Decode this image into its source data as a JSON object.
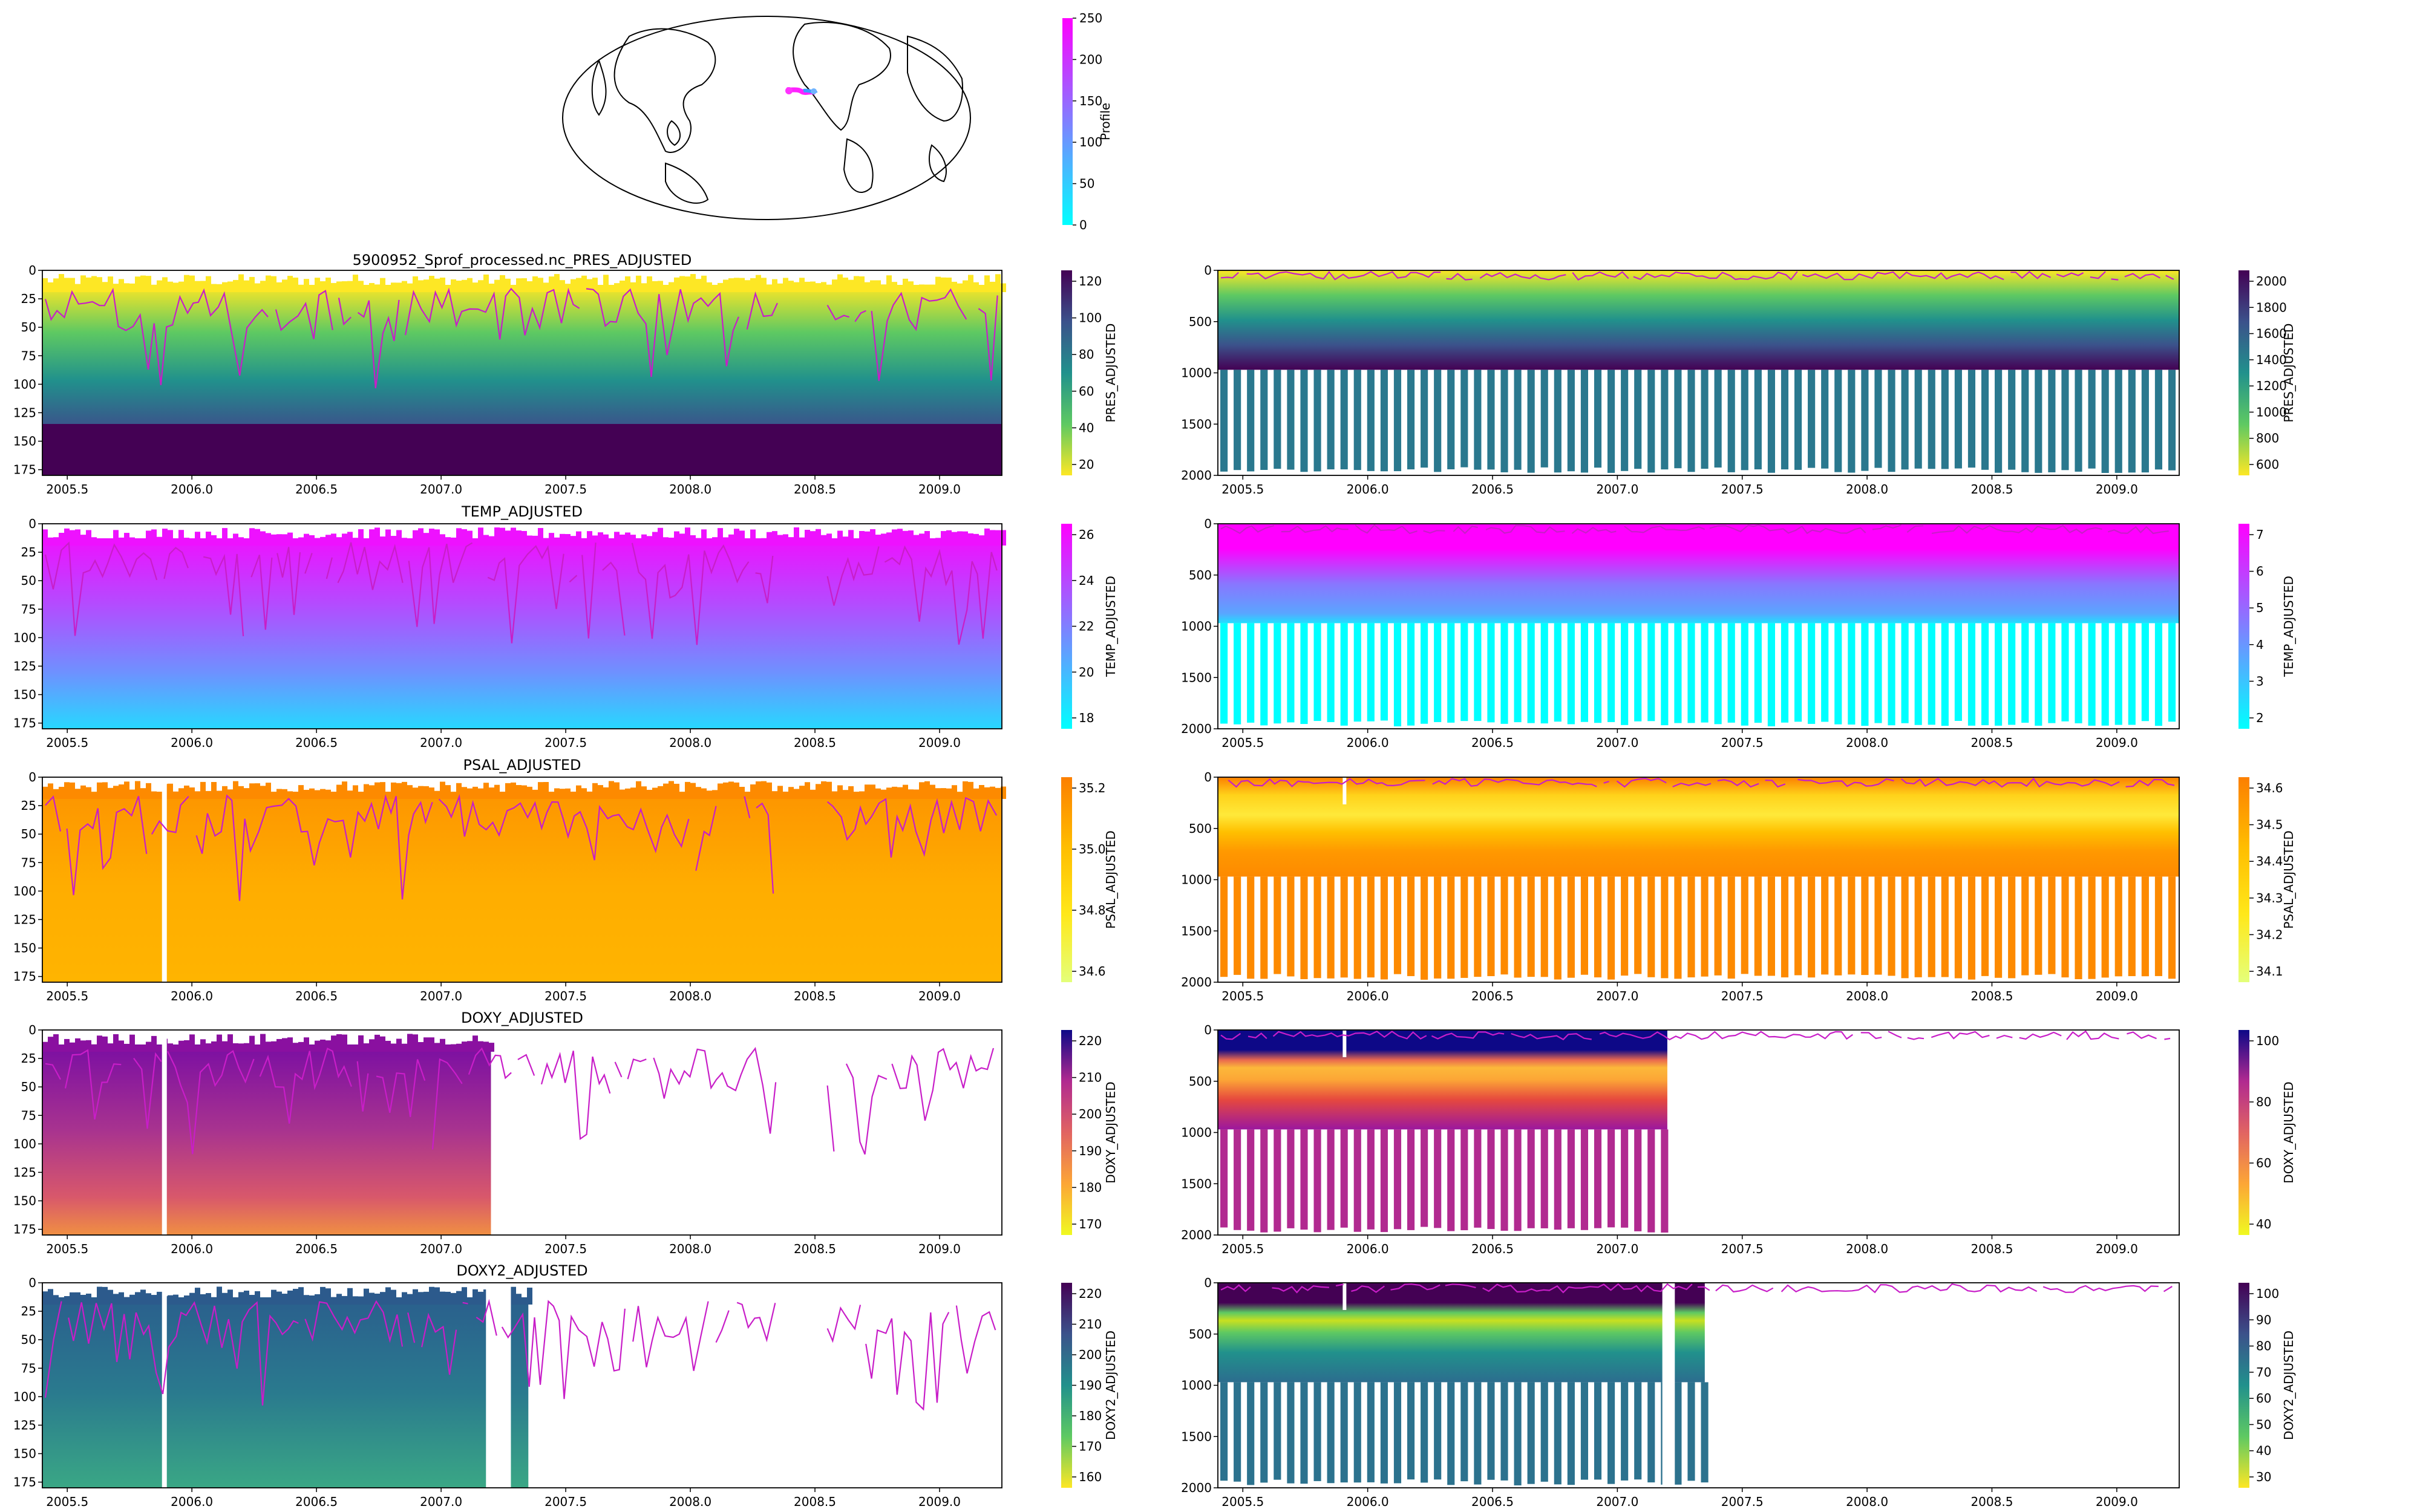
{
  "figure_title": "5900952_Sprof_processed.nc_PRES_ADJUSTED",
  "x_ticks": [
    "2005.5",
    "2006.0",
    "2006.5",
    "2007.0",
    "2007.5",
    "2008.0",
    "2008.5",
    "2009.0"
  ],
  "y_ticks_shallow": [
    "0",
    "25",
    "50",
    "75",
    "100",
    "125",
    "150",
    "175"
  ],
  "y_ticks_deep": [
    "0",
    "500",
    "1000",
    "1500",
    "2000"
  ],
  "map": {
    "colorbar_label": "Profile",
    "colorbar_ticks": [
      "0",
      "50",
      "100",
      "150",
      "200",
      "250"
    ]
  },
  "chart_data": [
    {
      "type": "heatmap",
      "title": "",
      "ylabel": "",
      "xlabel": "",
      "xlim": [
        2005.4,
        2009.25
      ],
      "ylim": [
        180,
        0
      ],
      "colorbar_label": "PRES_ADJUSTED",
      "colorbar_ticks": [
        "20",
        "40",
        "60",
        "80",
        "100",
        "120"
      ],
      "colormap": "viridis_r",
      "overlay_line_color": "#c81ec8"
    },
    {
      "type": "heatmap",
      "title": "",
      "xlim": [
        2005.4,
        2009.25
      ],
      "ylim": [
        2000,
        0
      ],
      "colorbar_label": "PRES_ADJUSTED",
      "colorbar_ticks": [
        "600",
        "800",
        "1000",
        "1200",
        "1400",
        "1600",
        "1800",
        "2000"
      ],
      "colormap": "viridis_r"
    },
    {
      "type": "heatmap",
      "title": "TEMP_ADJUSTED",
      "xlim": [
        2005.4,
        2009.25
      ],
      "ylim": [
        180,
        0
      ],
      "colorbar_label": "TEMP_ADJUSTED",
      "colorbar_ticks": [
        "18",
        "20",
        "22",
        "24",
        "26"
      ],
      "colormap": "cool"
    },
    {
      "type": "heatmap",
      "title": "",
      "xlim": [
        2005.4,
        2009.25
      ],
      "ylim": [
        2000,
        0
      ],
      "colorbar_label": "TEMP_ADJUSTED",
      "colorbar_ticks": [
        "2",
        "3",
        "4",
        "5",
        "6",
        "7"
      ],
      "colormap": "cool"
    },
    {
      "type": "heatmap",
      "title": "PSAL_ADJUSTED",
      "xlim": [
        2005.4,
        2009.25
      ],
      "ylim": [
        180,
        0
      ],
      "colorbar_label": "PSAL_ADJUSTED",
      "colorbar_ticks": [
        "34.6",
        "34.8",
        "35.0",
        "35.2"
      ],
      "colormap": "Wistia"
    },
    {
      "type": "heatmap",
      "title": "",
      "xlim": [
        2005.4,
        2009.25
      ],
      "ylim": [
        2000,
        0
      ],
      "colorbar_label": "PSAL_ADJUSTED",
      "colorbar_ticks": [
        "34.1",
        "34.2",
        "34.3",
        "34.4",
        "34.5",
        "34.6"
      ],
      "colormap": "Wistia"
    },
    {
      "type": "heatmap",
      "title": "DOXY_ADJUSTED",
      "xlim": [
        2005.4,
        2009.25
      ],
      "ylim": [
        180,
        0
      ],
      "colorbar_label": "DOXY_ADJUSTED",
      "colorbar_ticks": [
        "170",
        "180",
        "190",
        "200",
        "210",
        "220"
      ],
      "colormap": "plasma_r",
      "data_end": 2007.2
    },
    {
      "type": "heatmap",
      "title": "",
      "xlim": [
        2005.4,
        2009.25
      ],
      "ylim": [
        2000,
        0
      ],
      "colorbar_label": "DOXY_ADJUSTED",
      "colorbar_ticks": [
        "40",
        "60",
        "80",
        "100"
      ],
      "colormap": "plasma_r",
      "data_end": 2007.2
    },
    {
      "type": "heatmap",
      "title": "DOXY2_ADJUSTED",
      "xlim": [
        2005.4,
        2009.25
      ],
      "ylim": [
        180,
        0
      ],
      "colorbar_label": "DOXY2_ADJUSTED",
      "colorbar_ticks": [
        "160",
        "170",
        "180",
        "190",
        "200",
        "210",
        "220"
      ],
      "colormap": "viridis_r",
      "data_end": 2007.35
    },
    {
      "type": "heatmap",
      "title": "",
      "xlim": [
        2005.4,
        2009.25
      ],
      "ylim": [
        2000,
        0
      ],
      "colorbar_label": "DOXY2_ADJUSTED",
      "colorbar_ticks": [
        "30",
        "40",
        "50",
        "60",
        "70",
        "80",
        "90",
        "100"
      ],
      "colormap": "viridis_r",
      "data_end": 2007.35
    }
  ]
}
